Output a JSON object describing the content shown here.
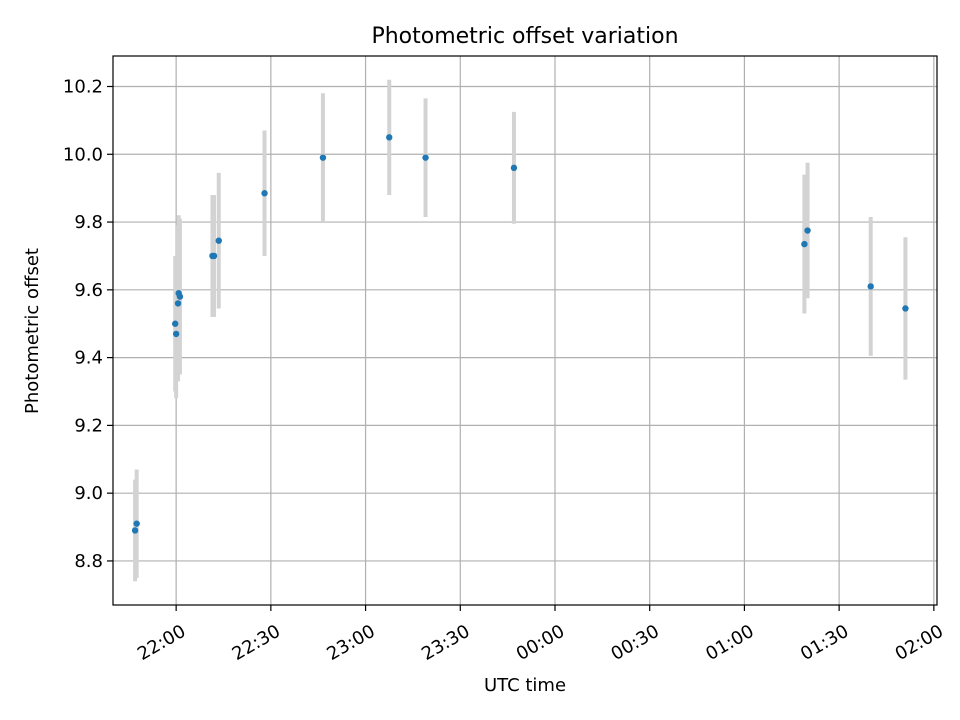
{
  "chart_data": {
    "type": "scatter",
    "title": "Photometric offset variation",
    "xlabel": "UTC time",
    "ylabel": "Photometric offset",
    "x_axis_kind": "time",
    "xlim": [
      "21:40",
      "02:01"
    ],
    "ylim": [
      8.67,
      10.29
    ],
    "grid": true,
    "x_ticks": [
      "22:00",
      "22:30",
      "23:00",
      "23:30",
      "00:00",
      "00:30",
      "01:00",
      "01:30",
      "02:00"
    ],
    "y_ticks": [
      "8.8",
      "9.0",
      "9.2",
      "9.4",
      "9.6",
      "9.8",
      "10.0",
      "10.2"
    ],
    "colors": {
      "points": "#1f77b4",
      "errorbars": "#d3d3d3",
      "grid": "#b0b0b0"
    },
    "points": [
      {
        "x": "21:47",
        "y": 8.89,
        "err": 0.15
      },
      {
        "x": "21:47.5",
        "y": 8.91,
        "err": 0.16
      },
      {
        "x": "21:59.7",
        "y": 9.5,
        "err": 0.2
      },
      {
        "x": "22:00",
        "y": 9.47,
        "err": 0.19
      },
      {
        "x": "22:00.6",
        "y": 9.56,
        "err": 0.23
      },
      {
        "x": "22:00.8",
        "y": 9.59,
        "err": 0.23
      },
      {
        "x": "22:01.2",
        "y": 9.58,
        "err": 0.23
      },
      {
        "x": "22:11.5",
        "y": 9.7,
        "err": 0.18
      },
      {
        "x": "22:12",
        "y": 9.7,
        "err": 0.18
      },
      {
        "x": "22:13.5",
        "y": 9.745,
        "err": 0.2
      },
      {
        "x": "22:28",
        "y": 9.885,
        "err": 0.185
      },
      {
        "x": "22:46.5",
        "y": 9.99,
        "err": 0.19
      },
      {
        "x": "23:07.5",
        "y": 10.05,
        "err": 0.17
      },
      {
        "x": "23:19",
        "y": 9.99,
        "err": 0.175
      },
      {
        "x": "23:47",
        "y": 9.96,
        "err": 0.165
      },
      {
        "x": "01:19",
        "y": 9.735,
        "err": 0.205
      },
      {
        "x": "01:20",
        "y": 9.775,
        "err": 0.2
      },
      {
        "x": "01:40",
        "y": 9.61,
        "err": 0.205
      },
      {
        "x": "01:51",
        "y": 9.545,
        "err": 0.21
      }
    ]
  }
}
